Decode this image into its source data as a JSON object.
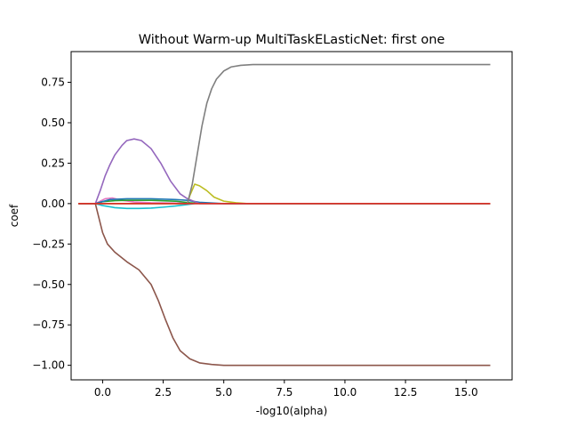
{
  "chart_data": {
    "type": "line",
    "title": "Without Warm-up MultiTaskELasticNet: first one",
    "xlabel": "-log10(alpha)",
    "ylabel": "coef",
    "xlim": [
      -1.3,
      16.9
    ],
    "ylim": [
      -1.09,
      0.94
    ],
    "grid": false,
    "legend": "none",
    "xticks": [
      {
        "value": 0.0,
        "label": "0.0"
      },
      {
        "value": 2.5,
        "label": "2.5"
      },
      {
        "value": 5.0,
        "label": "5.0"
      },
      {
        "value": 7.5,
        "label": "7.5"
      },
      {
        "value": 10.0,
        "label": "10.0"
      },
      {
        "value": 12.5,
        "label": "12.5"
      },
      {
        "value": 15.0,
        "label": "15.0"
      }
    ],
    "yticks": [
      {
        "value": 0.75,
        "label": "0.75"
      },
      {
        "value": 0.5,
        "label": "0.50"
      },
      {
        "value": 0.25,
        "label": "0.25"
      },
      {
        "value": 0.0,
        "label": "0.00"
      },
      {
        "value": -0.25,
        "label": "−0.25"
      },
      {
        "value": -0.5,
        "label": "−0.50"
      },
      {
        "value": -0.75,
        "label": "−0.75"
      },
      {
        "value": -1.0,
        "label": "−1.00"
      }
    ],
    "series": [
      {
        "color": "#e377c2",
        "x": [
          -1,
          -0.3,
          0.1,
          0.4,
          0.8,
          1.3,
          2,
          3,
          4,
          6,
          16
        ],
        "y": [
          0,
          0,
          0.03,
          0.035,
          0.02,
          0.01,
          0.005,
          0.003,
          0.001,
          0,
          0
        ]
      },
      {
        "color": "#2ca02c",
        "x": [
          -1,
          -0.3,
          0,
          0.5,
          1,
          2,
          3,
          3.6,
          4,
          5,
          16
        ],
        "y": [
          0,
          0,
          0.012,
          0.018,
          0.02,
          0.02,
          0.015,
          0.005,
          0.002,
          0,
          0
        ]
      },
      {
        "color": "#17becf",
        "x": [
          -1,
          -0.3,
          0,
          0.5,
          1,
          1.5,
          2,
          2.5,
          3,
          3.5,
          3.8,
          4.5,
          6,
          16
        ],
        "y": [
          0,
          0,
          -0.012,
          -0.025,
          -0.03,
          -0.03,
          -0.028,
          -0.022,
          -0.015,
          -0.006,
          0,
          0,
          0,
          0
        ]
      },
      {
        "color": "#1f77b4",
        "x": [
          -1,
          -0.3,
          0.3,
          1,
          2,
          3,
          3.5,
          4,
          5,
          16
        ],
        "y": [
          0,
          0,
          0.025,
          0.03,
          0.03,
          0.025,
          0.02,
          0.008,
          0,
          0
        ]
      },
      {
        "color": "#bcbd22",
        "x": [
          -1,
          3.5,
          3.6,
          3.8,
          4.0,
          4.3,
          4.6,
          5.0,
          5.5,
          6,
          16
        ],
        "y": [
          0,
          0,
          0.05,
          0.12,
          0.11,
          0.08,
          0.04,
          0.015,
          0.005,
          0,
          0
        ]
      },
      {
        "color": "#9467bd",
        "x": [
          -1,
          -0.3,
          -0.1,
          0.1,
          0.3,
          0.5,
          0.8,
          1.0,
          1.3,
          1.6,
          2.0,
          2.4,
          2.8,
          3.2,
          3.5,
          4,
          16
        ],
        "y": [
          0,
          0,
          0.08,
          0.17,
          0.24,
          0.3,
          0.36,
          0.39,
          0.4,
          0.39,
          0.34,
          0.25,
          0.14,
          0.06,
          0.03,
          0,
          0
        ]
      },
      {
        "color": "#7f7f7f",
        "x": [
          -1,
          3.5,
          3.7,
          3.9,
          4.1,
          4.3,
          4.5,
          4.7,
          5.0,
          5.3,
          5.7,
          6.2,
          7,
          16
        ],
        "y": [
          0,
          0,
          0.12,
          0.3,
          0.48,
          0.62,
          0.71,
          0.77,
          0.82,
          0.845,
          0.855,
          0.86,
          0.86,
          0.86
        ]
      },
      {
        "color": "#8c564b",
        "x": [
          -1,
          -0.3,
          -0.1,
          0.0,
          0.2,
          0.5,
          1.0,
          1.5,
          2.0,
          2.3,
          2.6,
          2.9,
          3.2,
          3.6,
          4.0,
          4.5,
          5.0,
          6.0,
          7,
          16
        ],
        "y": [
          0,
          0,
          -0.12,
          -0.18,
          -0.25,
          -0.3,
          -0.36,
          -0.41,
          -0.5,
          -0.6,
          -0.72,
          -0.83,
          -0.91,
          -0.96,
          -0.985,
          -0.995,
          -1.0,
          -1.0,
          -1.0,
          -1.0
        ]
      },
      {
        "color": "#ff7f0e",
        "x": [
          -1,
          16
        ],
        "y": [
          0,
          0
        ]
      },
      {
        "color": "#d62728",
        "x": [
          -1,
          16
        ],
        "y": [
          0,
          0
        ]
      }
    ]
  }
}
